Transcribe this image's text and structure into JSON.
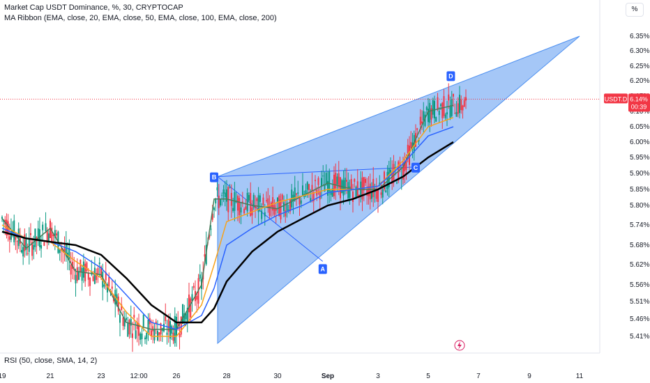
{
  "legend": {
    "title": "Market Cap USDT Dominance, %, 30, CRYPTOCAP",
    "ribbon": "MA Ribbon (EMA, close, 20, EMA, close, 50, EMA, close, 100, EMA, close, 200)",
    "rsi": "RSI (50, close, SMA, 14, 2)"
  },
  "scale_button": "%",
  "price_tag": {
    "symbol": "USDT.D",
    "price": "6.14%",
    "countdown": "00:39"
  },
  "colors": {
    "up": "#089981",
    "down": "#f23645",
    "ema20": "#4a7c59",
    "ema50": "#f7a21b",
    "ema100": "#2962ff",
    "ema200": "#000000",
    "wedge_fill": "#4c8ff0",
    "accent": "#2962ff"
  },
  "icons": [
    "lightning-icon"
  ],
  "chart_data": {
    "type": "line",
    "title": "Market Cap USDT Dominance, %, 30, CRYPTOCAP",
    "y_ticks": [
      "6.35%",
      "6.30%",
      "6.25%",
      "6.20%",
      "6.15%",
      "6.10%",
      "6.05%",
      "6.00%",
      "5.95%",
      "5.90%",
      "5.85%",
      "5.80%",
      "5.74%",
      "5.68%",
      "5.62%",
      "5.56%",
      "5.51%",
      "5.46%",
      "5.41%"
    ],
    "x_ticks": [
      "19",
      "21",
      "23",
      "12:00",
      "26",
      "28",
      "30",
      "Sep",
      "3",
      "5",
      "7",
      "9",
      "11"
    ],
    "ylim": [
      5.38,
      6.39
    ],
    "current_price": 6.14,
    "pattern_points": [
      {
        "label": "B",
        "x": "27.5",
        "y": 5.89
      },
      {
        "label": "A",
        "x": "31.8",
        "y": 5.63
      },
      {
        "label": "C",
        "x": "4.5",
        "y": 5.92
      },
      {
        "label": "D",
        "x": "5.9",
        "y": 6.19
      }
    ],
    "series": [
      {
        "name": "EMA 20",
        "values": [
          [
            19,
            5.76
          ],
          [
            20,
            5.67
          ],
          [
            21,
            5.73
          ],
          [
            22,
            5.6
          ],
          [
            23,
            5.59
          ],
          [
            24,
            5.45
          ],
          [
            25,
            5.43
          ],
          [
            26,
            5.43
          ],
          [
            27,
            5.56
          ],
          [
            27.5,
            5.82
          ],
          [
            28,
            5.82
          ],
          [
            29,
            5.8
          ],
          [
            30,
            5.79
          ],
          [
            31,
            5.83
          ],
          [
            32,
            5.87
          ],
          [
            33,
            5.85
          ],
          [
            34,
            5.85
          ],
          [
            35,
            5.92
          ],
          [
            36,
            6.1
          ],
          [
            37,
            6.12
          ]
        ]
      },
      {
        "name": "EMA 50",
        "values": [
          [
            19,
            5.74
          ],
          [
            20,
            5.7
          ],
          [
            21,
            5.69
          ],
          [
            22,
            5.63
          ],
          [
            23,
            5.58
          ],
          [
            24,
            5.48
          ],
          [
            25,
            5.41
          ],
          [
            26,
            5.41
          ],
          [
            27,
            5.5
          ],
          [
            27.5,
            5.62
          ],
          [
            28,
            5.75
          ],
          [
            29,
            5.78
          ],
          [
            30,
            5.81
          ],
          [
            31,
            5.83
          ],
          [
            32,
            5.85
          ],
          [
            33,
            5.85
          ],
          [
            34,
            5.86
          ],
          [
            35,
            5.94
          ],
          [
            36,
            6.05
          ],
          [
            37,
            6.08
          ]
        ]
      },
      {
        "name": "EMA 100",
        "values": [
          [
            19,
            5.73
          ],
          [
            20,
            5.7
          ],
          [
            21,
            5.69
          ],
          [
            22,
            5.66
          ],
          [
            23,
            5.61
          ],
          [
            24,
            5.53
          ],
          [
            25,
            5.45
          ],
          [
            26,
            5.43
          ],
          [
            27,
            5.47
          ],
          [
            27.5,
            5.55
          ],
          [
            28,
            5.68
          ],
          [
            29,
            5.73
          ],
          [
            30,
            5.77
          ],
          [
            31,
            5.8
          ],
          [
            32,
            5.84
          ],
          [
            33,
            5.85
          ],
          [
            34,
            5.86
          ],
          [
            35,
            5.93
          ],
          [
            36,
            6.02
          ],
          [
            37,
            6.05
          ]
        ]
      },
      {
        "name": "EMA 200",
        "values": [
          [
            19,
            5.72
          ],
          [
            20,
            5.7
          ],
          [
            21,
            5.69
          ],
          [
            22,
            5.68
          ],
          [
            23,
            5.65
          ],
          [
            24,
            5.58
          ],
          [
            25,
            5.5
          ],
          [
            26,
            5.45
          ],
          [
            27,
            5.45
          ],
          [
            27.5,
            5.49
          ],
          [
            28,
            5.57
          ],
          [
            29,
            5.66
          ],
          [
            30,
            5.72
          ],
          [
            31,
            5.76
          ],
          [
            32,
            5.8
          ],
          [
            33,
            5.82
          ],
          [
            34,
            5.85
          ],
          [
            35,
            5.89
          ],
          [
            36,
            5.95
          ],
          [
            37,
            6.0
          ]
        ]
      }
    ]
  }
}
